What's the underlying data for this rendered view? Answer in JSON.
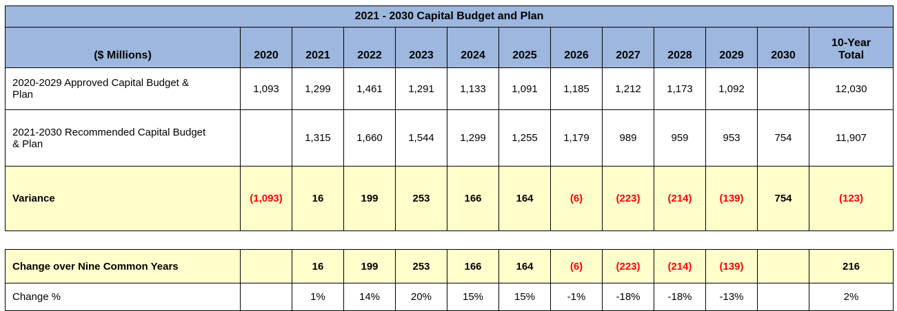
{
  "colors": {
    "header_blue": "#9DB7DE",
    "highlight_yellow": "#FFFFCC",
    "negative_red": "#FF0000",
    "border_black": "#000000"
  },
  "chart_data": {
    "type": "table",
    "title": "2021 - 2030 Capital Budget and Plan",
    "columns": [
      "($ Millions)",
      "2020",
      "2021",
      "2022",
      "2023",
      "2024",
      "2025",
      "2026",
      "2027",
      "2028",
      "2029",
      "2030",
      "10-Year\nTotal"
    ],
    "rows": [
      {
        "label": "2020-2029 Approved Capital Budget &\nPlan",
        "style": "normal",
        "values": [
          "1,093",
          "1,299",
          "1,461",
          "1,291",
          "1,133",
          "1,091",
          "1,185",
          "1,212",
          "1,173",
          "1,092",
          "",
          "12,030"
        ]
      },
      {
        "label": "2021-2030 Recommended Capital Budget\n& Plan",
        "style": "normal",
        "values": [
          "",
          "1,315",
          "1,660",
          "1,544",
          "1,299",
          "1,255",
          "1,179",
          "989",
          "959",
          "953",
          "754",
          "11,907"
        ]
      },
      {
        "label": "Variance",
        "style": "highlight",
        "values": [
          "(1,093)",
          "16",
          "199",
          "253",
          "166",
          "164",
          "(6)",
          "(223)",
          "(214)",
          "(139)",
          "754",
          "(123)"
        ]
      }
    ],
    "summary_rows": [
      {
        "label": "Change over Nine Common Years",
        "style": "highlight",
        "values": [
          "",
          "16",
          "199",
          "253",
          "166",
          "164",
          "(6)",
          "(223)",
          "(214)",
          "(139)",
          "",
          "216"
        ]
      },
      {
        "label": "Change %",
        "style": "normal",
        "values": [
          "",
          "1%",
          "14%",
          "20%",
          "15%",
          "15%",
          "-1%",
          "-18%",
          "-18%",
          "-13%",
          "",
          "2%"
        ]
      }
    ]
  }
}
